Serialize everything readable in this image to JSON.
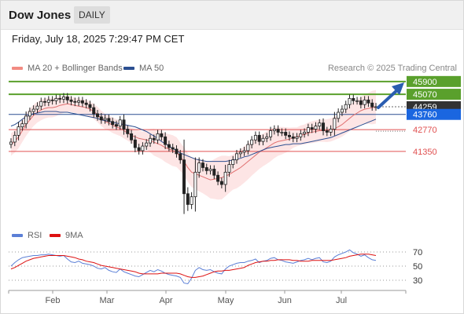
{
  "header": {
    "title": "Dow Jones",
    "period": "DAILY"
  },
  "datetime": "Friday, July 18, 2025 7:29:47 PM CET",
  "legend_main": [
    {
      "label": "MA 20 + Bollinger Bands",
      "color": "#f28b82"
    },
    {
      "label": "MA 50",
      "color": "#2c4f91"
    }
  ],
  "credit": "Research © 2025 Trading Central",
  "legend_rsi": [
    {
      "label": "RSI",
      "color": "#5b7fd6"
    },
    {
      "label": "9MA",
      "color": "#dd1111"
    }
  ],
  "colors": {
    "resistance": "#5aa02c",
    "support": "#e05050",
    "current": "#333333",
    "ma50": "#2c4f91",
    "ma20": "#e07070",
    "band": "#fde0e0",
    "arrow": "#2a5db0"
  },
  "chart_data": {
    "type": "candlestick",
    "x_labels": [
      "Feb",
      "Mar",
      "Apr",
      "May",
      "Jun",
      "Jul"
    ],
    "price_ylim": [
      36800,
      46300
    ],
    "levels": [
      {
        "value": 45900,
        "label": "45900",
        "kind": "resistance"
      },
      {
        "value": 45070,
        "label": "45070",
        "kind": "resistance"
      },
      {
        "value": 44259,
        "label": "44259",
        "kind": "current"
      },
      {
        "value": 43760,
        "label": "43760",
        "kind": "pivot"
      },
      {
        "value": 42770,
        "label": "42770",
        "kind": "support"
      },
      {
        "value": 41350,
        "label": "41350",
        "kind": "support"
      }
    ],
    "close": [
      41960,
      42400,
      42950,
      43150,
      43650,
      43950,
      44100,
      44300,
      44600,
      44550,
      44700,
      44650,
      44800,
      44750,
      44900,
      44700,
      44600,
      44550,
      44650,
      44500,
      44400,
      44200,
      43800,
      43600,
      43400,
      43500,
      43300,
      43100,
      43000,
      43400,
      42800,
      42500,
      42100,
      41600,
      41400,
      41700,
      41900,
      42200,
      42100,
      42500,
      42300,
      41800,
      41600,
      41500,
      41200,
      40800,
      38600,
      37900,
      38400,
      40000,
      40600,
      40300,
      40100,
      40200,
      39800,
      39400,
      39200,
      40000,
      40500,
      40800,
      41200,
      41300,
      41400,
      41800,
      42100,
      42400,
      42000,
      42200,
      42300,
      42700,
      42800,
      42600,
      42600,
      42400,
      42300,
      42200,
      42300,
      42500,
      42600,
      42900,
      42800,
      43000,
      43200,
      42700,
      42600,
      42800,
      43500,
      43900,
      44100,
      44400,
      44800,
      44650,
      44650,
      44400,
      44700,
      44500,
      44250,
      44259
    ],
    "ma20": [
      41800,
      42000,
      42300,
      42700,
      43100,
      43400,
      43700,
      43900,
      44050,
      44150,
      44200,
      44200,
      44250,
      44350,
      44400,
      44450,
      44400,
      44350,
      44300,
      44250,
      44200,
      44100,
      43950,
      43750,
      43500,
      43300,
      43200,
      43050,
      42950,
      42850,
      42700,
      42550,
      42400,
      42300,
      42200,
      42150,
      42100,
      42050,
      41950,
      41850,
      41750,
      41600,
      41500,
      41400,
      41300,
      41000,
      40700,
      40300,
      40000,
      39900,
      39800,
      39700,
      39600,
      39500,
      39550,
      39600,
      39650,
      39750,
      39850,
      40000,
      40150,
      40300,
      40500,
      40700,
      40900,
      41100,
      41300,
      41450,
      41600,
      41750,
      41900,
      42000,
      42050,
      42100,
      42150,
      42250,
      42300,
      42400,
      42450,
      42550,
      42600,
      42650,
      42700,
      42700,
      42700,
      42750,
      42850,
      42950,
      43100,
      43300,
      43500,
      43700,
      43850,
      44000,
      44100,
      44150,
      44200,
      44250
    ],
    "ma50": [
      43000,
      43100,
      43250,
      43450,
      43600,
      43750,
      43800,
      43850,
      43900,
      43950,
      43950,
      43950,
      43950,
      43900,
      43900,
      43900,
      43850,
      43800,
      43750,
      43700,
      43650,
      43600,
      43550,
      43500,
      43400,
      43350,
      43300,
      43250,
      43200,
      43150,
      43100,
      43050,
      43000,
      42950,
      42850,
      42750,
      42650,
      42500,
      42350,
      42200,
      42000,
      41850,
      41700,
      41550,
      41400,
      41250,
      41150,
      41050,
      40950,
      40850,
      40800,
      40750,
      40700,
      40700,
      40700,
      40700,
      40700,
      40700,
      40750,
      40800,
      40850,
      40900,
      41000,
      41050,
      41150,
      41250,
      41350,
      41450,
      41550,
      41600,
      41650,
      41700,
      41750,
      41800,
      41800,
      41850,
      41850,
      41850,
      41900,
      41950,
      42000,
      42050,
      42100,
      42150,
      42200,
      42250,
      42350,
      42450,
      42550,
      42650,
      42750,
      42850,
      42950,
      43050,
      43150,
      43250,
      43350,
      43450
    ],
    "rsi_ylim": [
      20,
      80
    ],
    "rsi_levels": [
      70,
      50,
      30
    ],
    "rsi": [
      50,
      55,
      59,
      62,
      63,
      64,
      65,
      65,
      66,
      66,
      67,
      66,
      65,
      64,
      65,
      60,
      56,
      55,
      57,
      54,
      53,
      52,
      50,
      47,
      46,
      48,
      44,
      42,
      41,
      46,
      42,
      40,
      38,
      36,
      35,
      38,
      41,
      44,
      42,
      45,
      43,
      40,
      38,
      37,
      36,
      34,
      26,
      25,
      33,
      44,
      48,
      45,
      44,
      45,
      42,
      40,
      39,
      46,
      50,
      52,
      54,
      55,
      55,
      57,
      58,
      60,
      55,
      57,
      58,
      61,
      62,
      59,
      58,
      56,
      55,
      54,
      56,
      58,
      59,
      61,
      59,
      61,
      62,
      56,
      55,
      57,
      63,
      66,
      68,
      70,
      73,
      69,
      67,
      64,
      66,
      62,
      59,
      58
    ],
    "rsi_ma9": [
      46,
      48,
      51,
      54,
      57,
      59,
      61,
      62,
      63,
      64,
      65,
      65,
      65,
      65,
      65,
      64,
      63,
      62,
      60,
      59,
      57,
      56,
      55,
      53,
      51,
      50,
      49,
      48,
      47,
      46,
      45,
      44,
      43,
      42,
      40,
      39,
      39,
      39,
      39,
      39,
      40,
      40,
      40,
      40,
      40,
      39,
      37,
      35,
      34,
      34,
      35,
      36,
      38,
      40,
      42,
      43,
      43,
      44,
      44,
      45,
      46,
      47,
      48,
      51,
      53,
      55,
      56,
      57,
      57,
      58,
      58,
      59,
      59,
      59,
      59,
      58,
      58,
      57,
      57,
      57,
      58,
      58,
      58,
      58,
      58,
      58,
      59,
      60,
      61,
      62,
      64,
      65,
      66,
      67,
      67,
      67,
      66,
      65
    ]
  }
}
